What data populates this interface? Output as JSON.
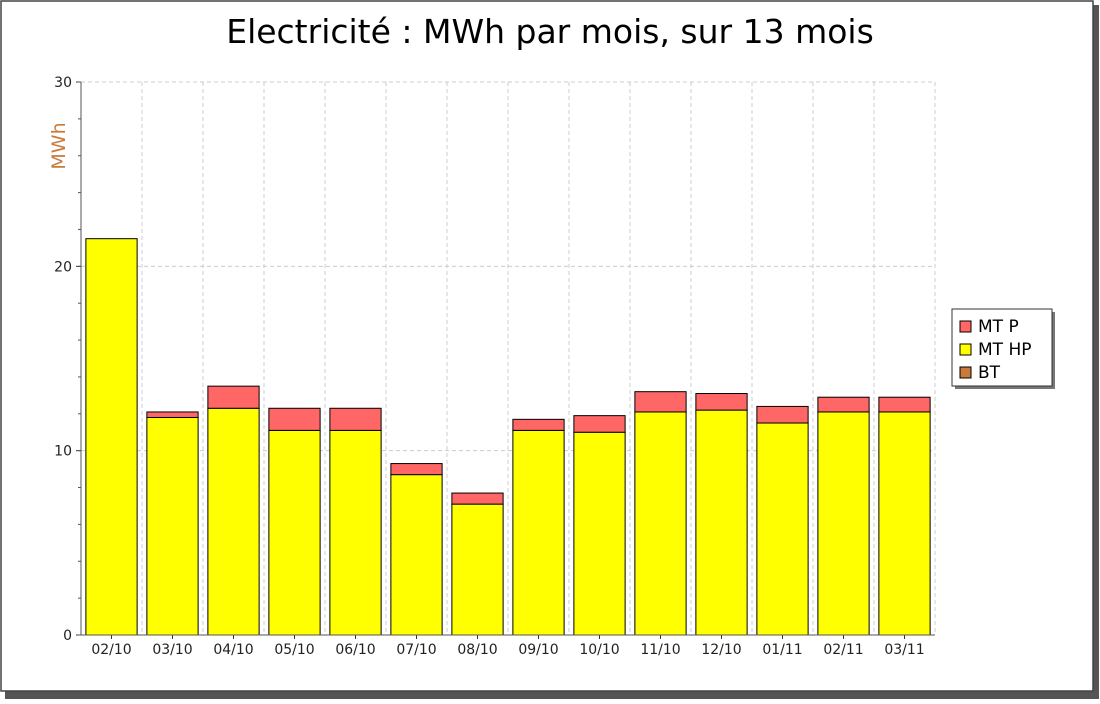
{
  "chart_data": {
    "type": "bar",
    "stacked": true,
    "title": "Electricité : MWh par mois, sur 13 mois",
    "xlabel": "",
    "ylabel": "MWh",
    "ylim": [
      0,
      30
    ],
    "yticks": [
      "0",
      "10",
      "20",
      "30"
    ],
    "grid": true,
    "legend_position": "right",
    "categories": [
      "02/10",
      "03/10",
      "04/10",
      "05/10",
      "06/10",
      "07/10",
      "08/10",
      "09/10",
      "10/10",
      "11/10",
      "12/10",
      "01/11",
      "02/11",
      "03/11"
    ],
    "series": [
      {
        "name": "BT",
        "color": "#c87a3a",
        "values": [
          0,
          0,
          0,
          0,
          0,
          0,
          0,
          0,
          0,
          0,
          0,
          0,
          0,
          0
        ]
      },
      {
        "name": "MT HP",
        "color": "#ffff00",
        "values": [
          21.5,
          11.8,
          12.3,
          11.1,
          11.1,
          8.7,
          7.1,
          11.1,
          11.0,
          12.1,
          12.2,
          11.5,
          12.1,
          12.1
        ]
      },
      {
        "name": "MT P",
        "color": "#ff6666",
        "values": [
          0,
          0.3,
          1.2,
          1.2,
          1.2,
          0.6,
          0.6,
          0.6,
          0.9,
          1.1,
          0.9,
          0.9,
          0.8,
          0.8
        ]
      }
    ],
    "legend_order": [
      "MT P",
      "MT HP",
      "BT"
    ],
    "colors": {
      "title": "#000000",
      "ylabel": "#c87a3a",
      "grid": "#cccccc",
      "frame": "#444444"
    }
  }
}
